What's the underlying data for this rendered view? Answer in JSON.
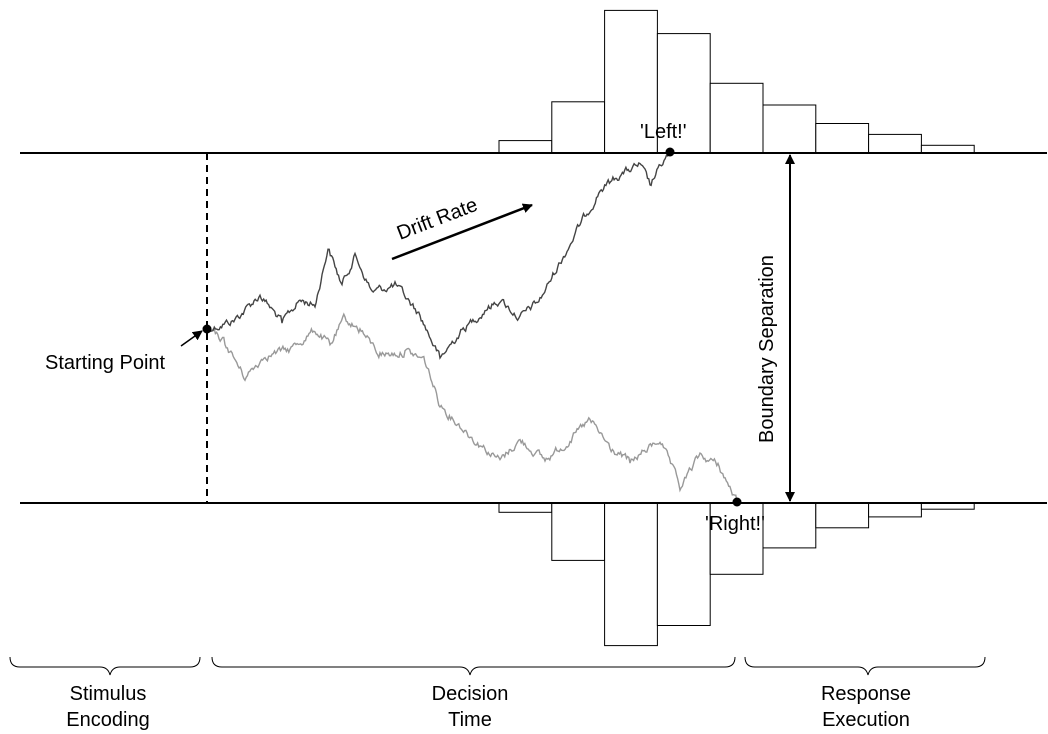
{
  "labels": {
    "left_response": "'Left!'",
    "right_response": "'Right!'",
    "drift_rate": "Drift Rate",
    "starting_point": "Starting Point",
    "boundary_separation": "Boundary Separation"
  },
  "phases": [
    {
      "line1": "Stimulus",
      "line2": "Encoding"
    },
    {
      "line1": "Decision",
      "line2": "Time"
    },
    {
      "line1": "Response",
      "line2": "Execution"
    }
  ],
  "histograms": {
    "upper_relative_counts": [
      0.08,
      0.33,
      0.92,
      0.77,
      0.45,
      0.31,
      0.19,
      0.12,
      0.05
    ],
    "lower_relative_counts": [
      0.06,
      0.37,
      0.92,
      0.79,
      0.46,
      0.29,
      0.16,
      0.09,
      0.04
    ]
  },
  "colors": {
    "upper_path": "#444444",
    "lower_path": "#999999",
    "line": "#000000"
  }
}
